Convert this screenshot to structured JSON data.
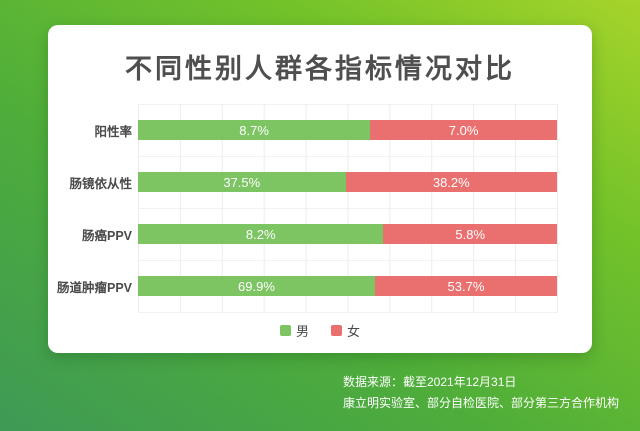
{
  "background": {
    "gradient_from_bottom_left": "#3E9A55",
    "gradient_mid_1": "#4EAD3A",
    "gradient_mid_2": "#73C22A",
    "gradient_to_top_right": "#A6D42A"
  },
  "card": {
    "background": "#FFFFFF"
  },
  "chart_data": {
    "type": "bar",
    "orientation": "horizontal",
    "stacking": "proportional-100pct",
    "title": "不同性别人群各指标情况对比",
    "title_color": "#4F4F4F",
    "categories": [
      "阳性率",
      "肠镜依从性",
      "肠癌PPV",
      "肠道肿瘤PPV"
    ],
    "series": [
      {
        "name": "男",
        "color": "#7DC463",
        "values": [
          8.7,
          37.5,
          8.2,
          69.9
        ]
      },
      {
        "name": "女",
        "color": "#EA7070",
        "values": [
          7.0,
          38.2,
          5.8,
          53.7
        ]
      }
    ],
    "value_suffix": "%",
    "value_label_color": "#FFFFFF",
    "grid": true,
    "gridline_color": "#EDEDED",
    "legend_position": "bottom"
  },
  "legend": {
    "male_label": "男",
    "female_label": "女"
  },
  "footer": {
    "line1": "数据来源：截至2021年12月31日",
    "line2": "康立明实验室、部分自检医院、部分第三方合作机构"
  }
}
